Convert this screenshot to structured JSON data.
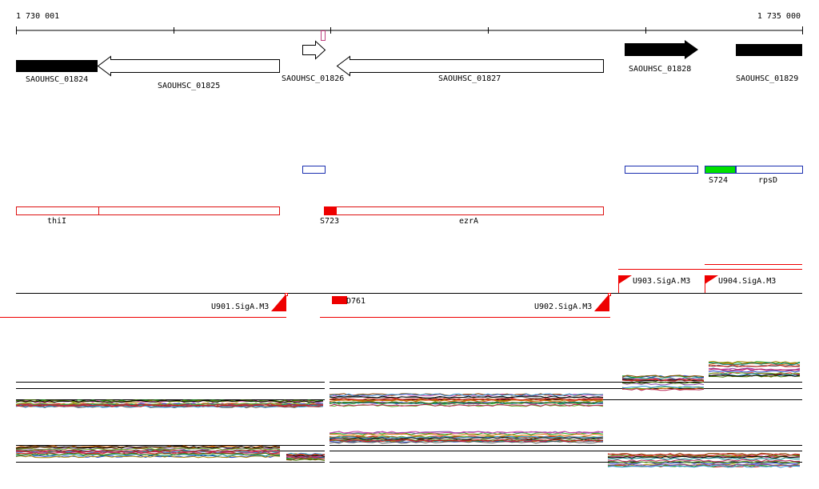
{
  "ruler": {
    "start_label": "1 730 001",
    "end_label": "1 735 000"
  },
  "genes": [
    {
      "label": "SAOUHSC_01824"
    },
    {
      "label": "SAOUHSC_01825"
    },
    {
      "label": "SAOUHSC_01826"
    },
    {
      "label": "SAOUHSC_01827"
    },
    {
      "label": "SAOUHSC_01828"
    },
    {
      "label": "SAOUHSC_01829"
    }
  ],
  "blue_features": [
    {
      "label": ""
    },
    {
      "label": ""
    },
    {
      "label": "S724",
      "fill": "#00e000"
    },
    {
      "label": "rpsD"
    }
  ],
  "red_features": [
    {
      "label": "thiI"
    },
    {
      "label": "S723"
    },
    {
      "label": "ezrA"
    }
  ],
  "regulatory": [
    {
      "label": "U901.SigA.M3"
    },
    {
      "label": "D761"
    },
    {
      "label": "U902.SigA.M3"
    },
    {
      "label": "U903.SigA.M3"
    },
    {
      "label": "U904.SigA.M3"
    }
  ],
  "colors": {
    "gene_fill": "#000000",
    "gene_outline": "#000000",
    "feature_blue": "#1a2fb0",
    "feature_red": "#dd1111",
    "promoter_red": "#ee0000"
  }
}
